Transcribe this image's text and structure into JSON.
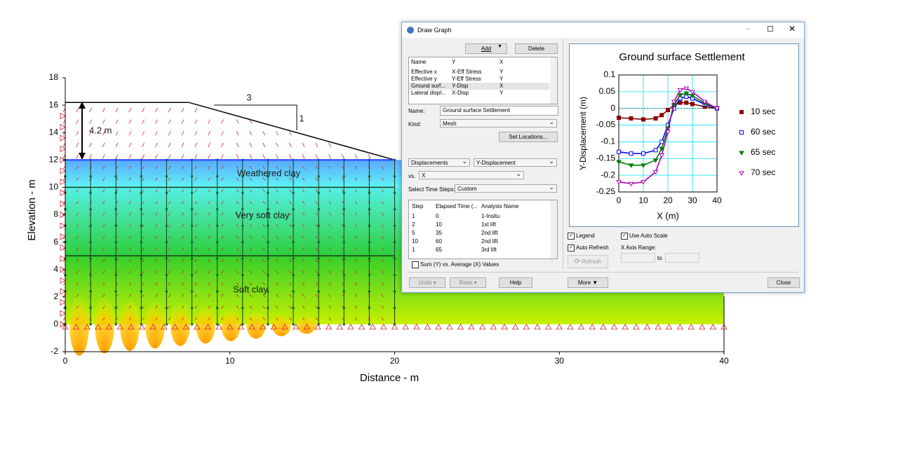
{
  "model": {
    "xlabel": "Distance - m",
    "ylabel": "Elevation - m",
    "xlim": [
      0,
      40
    ],
    "ylim": [
      -2,
      18
    ],
    "xticks": [
      0,
      10,
      20,
      30,
      40
    ],
    "yticks": [
      -2,
      0,
      2,
      4,
      6,
      8,
      10,
      12,
      14,
      16,
      18
    ],
    "embankment": {
      "x": [
        0,
        7.5,
        20
      ],
      "y": [
        16.2,
        16.2,
        12
      ]
    },
    "layers": [
      {
        "name": "Weathered clay",
        "top": 12,
        "bottom": 10
      },
      {
        "name": "Very soft clay",
        "top": 10,
        "bottom": 5
      },
      {
        "name": "Soft clay",
        "top": 5,
        "bottom": 0
      }
    ],
    "annotations": {
      "height": "4.2 m",
      "slope_run": "3",
      "slope_rise": "1"
    }
  },
  "dialog": {
    "title": "Draw Graph",
    "buttons": {
      "add": "Add",
      "delete": "Delete",
      "set_locations": "Set Locations...",
      "refresh": "Refresh",
      "undo": "Undo",
      "redo": "Redo",
      "help": "Help",
      "more": "More",
      "close": "Close"
    },
    "graph_list": {
      "columns": [
        "Name",
        "Y",
        "X"
      ],
      "rows": [
        [
          "Effective x",
          "X-Eff Stress",
          "Y"
        ],
        [
          "Effective y",
          "Y-Eff Stress",
          "Y"
        ],
        [
          "Ground surf...",
          "Y-Disp",
          "X"
        ],
        [
          "Lateral displ...",
          "X-Disp",
          "Y"
        ]
      ]
    },
    "name_label": "Name:",
    "name_value": "Ground surface Settlement",
    "kind_label": "Kind:",
    "kind_value": "Mesh",
    "y_group": "Displacements",
    "y_param": "Y-Displacement",
    "vs_label": "vs.",
    "x_param": "X",
    "time_steps_label": "Select Time Steps:",
    "time_steps_value": "Custom",
    "steps": {
      "columns": [
        "Step",
        "Elapsed Time (...",
        "Analysis Name"
      ],
      "rows": [
        [
          "1",
          "0",
          "1-Insitu"
        ],
        [
          "2",
          "10",
          "1st lift"
        ],
        [
          "5",
          "35",
          "2nd lift"
        ],
        [
          "10",
          "60",
          "2nd lift"
        ],
        [
          "1",
          "65",
          "3rd lift"
        ]
      ]
    },
    "sum_option": "Sum (Y) vs. Average (X) Values",
    "legend_option": "Legend",
    "auto_scale_option": "Use Auto Scale",
    "auto_refresh_option": "Auto Refresh",
    "x_axis_range_label": "X Axis Range:",
    "to_label": "to"
  },
  "chart_data": {
    "type": "line",
    "title": "Ground surface Settlement",
    "xlabel": "X (m)",
    "ylabel": "Y-Displacement (m)",
    "xlim": [
      0,
      40
    ],
    "ylim": [
      -0.25,
      0.1
    ],
    "xticks": [
      0,
      10,
      20,
      30,
      40
    ],
    "yticks": [
      0.1,
      0.05,
      0,
      -0.05,
      -0.1,
      -0.15,
      -0.2,
      -0.25
    ],
    "grid": true,
    "x": [
      0,
      5,
      10,
      15,
      17.5,
      20,
      22.5,
      25,
      27.5,
      30,
      35,
      40
    ],
    "series": [
      {
        "name": "10 sec",
        "color": "#8b0000",
        "marker": "filled-square",
        "values": [
          -0.028,
          -0.03,
          -0.033,
          -0.03,
          -0.02,
          -0.005,
          0.01,
          0.017,
          0.017,
          0.013,
          0.005,
          0
        ]
      },
      {
        "name": "60 sec",
        "color": "#0000ff",
        "marker": "open-square",
        "values": [
          -0.13,
          -0.135,
          -0.135,
          -0.125,
          -0.1,
          -0.05,
          0.0,
          0.03,
          0.035,
          0.03,
          0.012,
          0
        ]
      },
      {
        "name": "65 sec",
        "color": "#008000",
        "marker": "filled-triangle",
        "values": [
          -0.16,
          -0.17,
          -0.17,
          -0.155,
          -0.12,
          -0.06,
          0.01,
          0.04,
          0.045,
          0.038,
          0.015,
          0
        ]
      },
      {
        "name": "70 sec",
        "color": "#b000b0",
        "marker": "open-triangle",
        "values": [
          -0.22,
          -0.225,
          -0.22,
          -0.19,
          -0.14,
          -0.07,
          0.02,
          0.055,
          0.06,
          0.05,
          0.02,
          0
        ]
      }
    ]
  }
}
